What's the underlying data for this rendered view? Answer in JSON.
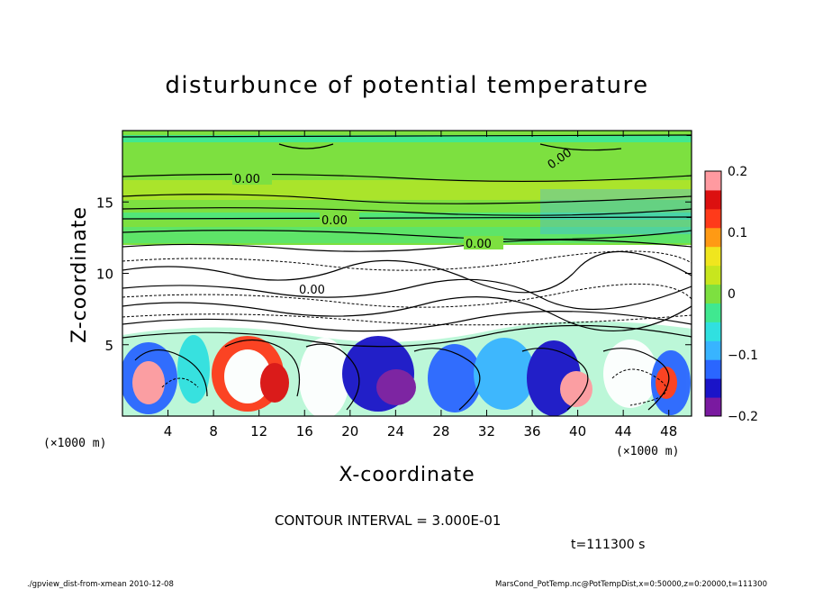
{
  "chart_data": {
    "type": "heatmap",
    "title": "disturbunce of potential temperature",
    "xlabel": "X-coordinate",
    "ylabel": "Z-coordinate",
    "x_unit": "(×1000 m)",
    "y_unit": "(×1000 m)",
    "xlim": [
      0,
      50
    ],
    "ylim": [
      0,
      20
    ],
    "x_ticks": [
      4,
      8,
      12,
      16,
      20,
      24,
      28,
      32,
      36,
      40,
      44,
      48
    ],
    "y_ticks": [
      5,
      10,
      15
    ],
    "colorbar": {
      "range": [
        -0.2,
        0.2
      ],
      "tick_values": [
        0.2,
        0.1,
        0,
        -0.1,
        -0.2
      ],
      "tick_labels": [
        "0.2",
        "0.1",
        "0",
        "−0.1",
        "−0.2"
      ],
      "colors": [
        "#7a1aa0",
        "#1a14c8",
        "#2a66ff",
        "#38b4ff",
        "#30e0e0",
        "#40e890",
        "#7de040",
        "#c8e61e",
        "#f0e61e",
        "#ff9a14",
        "#ff3a1a",
        "#dc1010",
        "#ff9aa0"
      ]
    },
    "contour_labels": [
      "0.00",
      "0.00",
      "0.00",
      "0.00",
      "0.00"
    ],
    "contour_interval": "CONTOUR INTERVAL = 3.000E-01",
    "time_label": "t=111300 s",
    "grid": false
  },
  "footer": {
    "left": "./gpview_dist-from-xmean  2010-12-08",
    "right": "MarsCond_PotTemp.nc@PotTempDist,x=0:50000,z=0:20000,t=111300"
  }
}
